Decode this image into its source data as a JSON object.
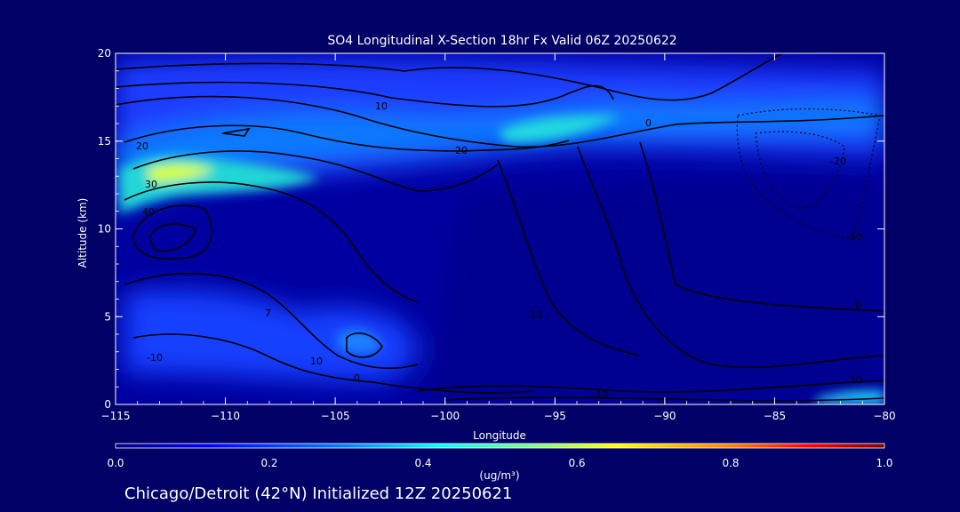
{
  "chart_data": {
    "type": "heatmap",
    "title": "SO4 Longitudinal X-Section 18hr  Fx Valid 06Z 20250622",
    "xlabel": "Longitude",
    "ylabel": "Altitude (km)",
    "xlim": [
      -115,
      -80
    ],
    "ylim": [
      0,
      20
    ],
    "x_ticks": [
      -115,
      -110,
      -105,
      -100,
      -95,
      -90,
      -85,
      -80
    ],
    "y_ticks": [
      0,
      5,
      10,
      15,
      20
    ],
    "colorbar": {
      "units": "(ug/m³)",
      "min": 0.0,
      "max": 1.0,
      "ticks": [
        "0.0",
        "0.2",
        "0.4",
        "0.6",
        "0.8",
        "1.0"
      ],
      "colormap": [
        "#00007f",
        "#0000ff",
        "#0080ff",
        "#00ffff",
        "#80ff80",
        "#ffff00",
        "#ff8000",
        "#ff0000",
        "#800000"
      ]
    },
    "fields": [
      {
        "lon": -113.5,
        "alt": 13.0,
        "value": 0.5
      },
      {
        "lon": -110,
        "alt": 13.5,
        "value": 0.38
      },
      {
        "lon": -105,
        "alt": 14.2,
        "value": 0.3
      },
      {
        "lon": -100,
        "alt": 15.0,
        "value": 0.25
      },
      {
        "lon": -96,
        "alt": 15.5,
        "value": 0.4
      },
      {
        "lon": -92,
        "alt": 15.8,
        "value": 0.32
      },
      {
        "lon": -88,
        "alt": 16.0,
        "value": 0.28
      },
      {
        "lon": -83,
        "alt": 16.5,
        "value": 0.25
      },
      {
        "lon": -103.5,
        "alt": 4.0,
        "value": 0.25
      },
      {
        "lon": -111,
        "alt": 10.0,
        "value": 0.15
      },
      {
        "lon": -82,
        "alt": 0.5,
        "value": 0.3
      }
    ],
    "contour_labels": [
      "10",
      "20",
      "30",
      "40",
      "20",
      "10",
      "0",
      "-20",
      "-10",
      "0",
      "7",
      "10",
      "-10",
      "10",
      "0",
      "10",
      "-10"
    ]
  },
  "caption": "Chicago/Detroit (42°N) Initialized 12Z 20250621"
}
